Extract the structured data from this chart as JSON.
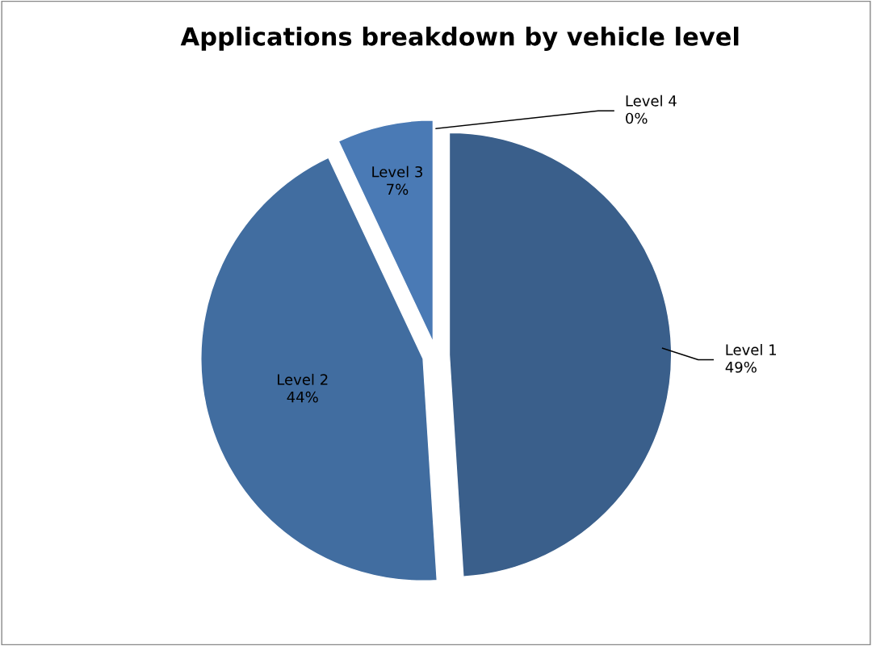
{
  "chart_data": {
    "type": "pie",
    "title": "Applications breakdown by vehicle level",
    "categories": [
      "Level 1",
      "Level 2",
      "Level 3",
      "Level 4"
    ],
    "values": [
      49,
      44,
      7,
      0
    ],
    "value_labels": [
      "49%",
      "44%",
      "7%",
      "0%"
    ],
    "colors": [
      "#3a5f8b",
      "#416da0",
      "#4a7ab5",
      "#6a8fc4"
    ],
    "legend": false
  }
}
